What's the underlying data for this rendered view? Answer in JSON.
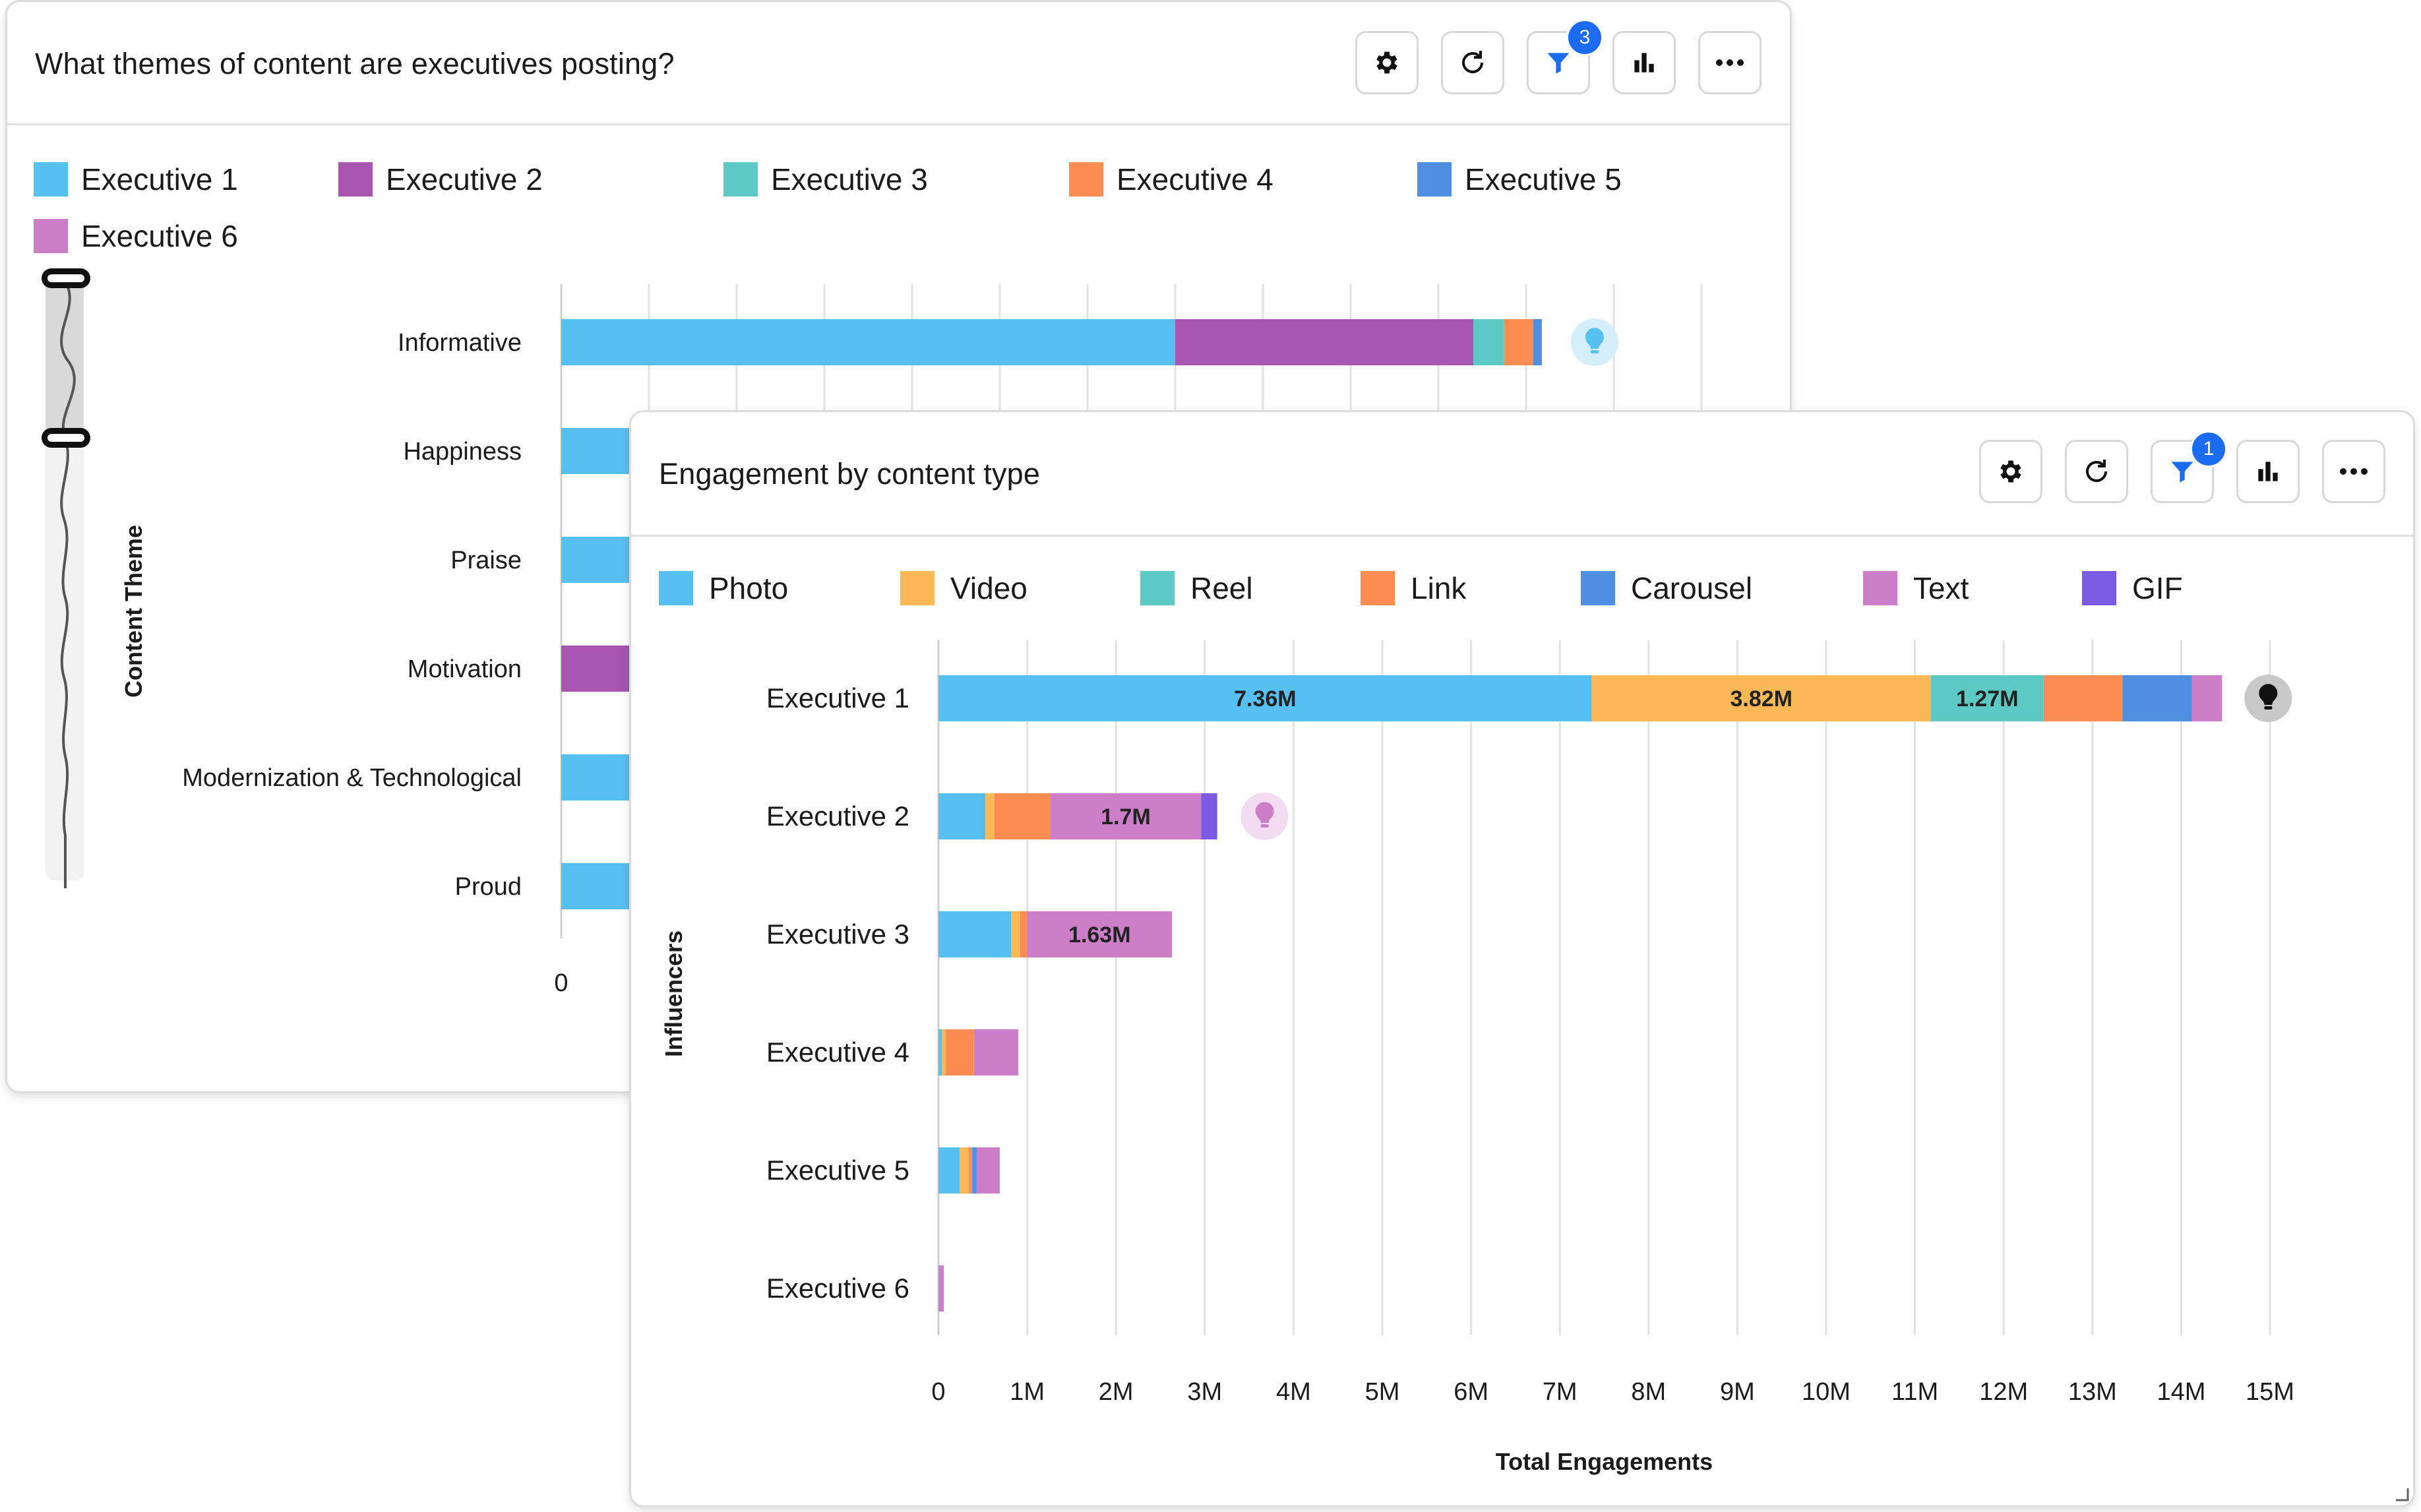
{
  "card1": {
    "title": "What themes of content are executives posting?",
    "filter_badge": "3",
    "legend": [
      {
        "label": "Executive 1",
        "color": "#56c0f0"
      },
      {
        "label": "Executive 2",
        "color": "#a855b0"
      },
      {
        "label": "Executive 3",
        "color": "#5cc9c4"
      },
      {
        "label": "Executive 4",
        "color": "#fb8d52"
      },
      {
        "label": "Executive 5",
        "color": "#4f8fe2"
      },
      {
        "label": "Executive 6",
        "color": "#cc7fc8"
      }
    ],
    "y_axis_title": "Content Theme",
    "zero_label": "0"
  },
  "card2": {
    "title": "Engagement by content type",
    "filter_badge": "1",
    "legend": [
      {
        "label": "Photo",
        "color": "#56c0f0"
      },
      {
        "label": "Video",
        "color": "#fbb854"
      },
      {
        "label": "Reel",
        "color": "#5cc9c4"
      },
      {
        "label": "Link",
        "color": "#fb8d52"
      },
      {
        "label": "Carousel",
        "color": "#4f8fe2"
      },
      {
        "label": "Text",
        "color": "#cc7fc8"
      },
      {
        "label": "GIF",
        "color": "#7a5ae0"
      }
    ]
  },
  "chart_data": [
    {
      "type": "bar",
      "orientation": "horizontal",
      "stacked": true,
      "title": "What themes of content are executives posting?",
      "ylabel": "Content Theme",
      "xlabel": "",
      "categories": [
        "Informative",
        "Happiness",
        "Praise",
        "Motivation",
        "Modernization & Technological",
        "Proud"
      ],
      "series": [
        {
          "name": "Executive 1",
          "values": [
            7.0,
            null,
            null,
            null,
            null,
            null
          ]
        },
        {
          "name": "Executive 2",
          "values": [
            3.4,
            null,
            null,
            null,
            null,
            null
          ]
        },
        {
          "name": "Executive 3",
          "values": [
            0.35,
            null,
            null,
            null,
            null,
            null
          ]
        },
        {
          "name": "Executive 4",
          "values": [
            0.33,
            null,
            null,
            null,
            null,
            null
          ]
        },
        {
          "name": "Executive 5",
          "values": [
            0.1,
            null,
            null,
            null,
            null,
            null
          ]
        },
        {
          "name": "Executive 6",
          "values": [
            0,
            null,
            null,
            null,
            null,
            null
          ]
        }
      ],
      "visible_first_segment": {
        "Happiness": "Executive 1",
        "Praise": "Executive 1",
        "Motivation": "Executive 2",
        "Modernization & Technological": "Executive 1",
        "Proud": "Executive 1"
      },
      "xlim_start": 0,
      "x_tick_labels": [
        "0"
      ]
    },
    {
      "type": "bar",
      "orientation": "horizontal",
      "stacked": true,
      "title": "Engagement by content type",
      "xlabel": "Total Engagements",
      "ylabel": "Influencers",
      "categories": [
        "Executive 1",
        "Executive 2",
        "Executive 3",
        "Executive 4",
        "Executive 5",
        "Executive 6"
      ],
      "series": [
        {
          "name": "Photo",
          "values": [
            7.36,
            0.53,
            0.82,
            0.04,
            0.24,
            0.0
          ]
        },
        {
          "name": "Video",
          "values": [
            3.82,
            0.1,
            0.1,
            0.04,
            0.1,
            0.0
          ]
        },
        {
          "name": "Reel",
          "values": [
            1.27,
            0.0,
            0.0,
            0.0,
            0.0,
            0.0
          ]
        },
        {
          "name": "Link",
          "values": [
            0.89,
            0.63,
            0.08,
            0.32,
            0.04,
            0.0
          ]
        },
        {
          "name": "Carousel",
          "values": [
            0.78,
            0.0,
            0.0,
            0.0,
            0.05,
            0.0
          ]
        },
        {
          "name": "Text",
          "values": [
            0.34,
            1.7,
            1.63,
            0.5,
            0.26,
            0.06
          ]
        },
        {
          "name": "GIF",
          "values": [
            0.0,
            0.18,
            0.0,
            0.0,
            0.0,
            0.0
          ]
        }
      ],
      "data_labels": [
        {
          "category": "Executive 1",
          "series": "Photo",
          "text": "7.36M"
        },
        {
          "category": "Executive 1",
          "series": "Video",
          "text": "3.82M"
        },
        {
          "category": "Executive 1",
          "series": "Reel",
          "text": "1.27M"
        },
        {
          "category": "Executive 2",
          "series": "Text",
          "text": "1.7M"
        },
        {
          "category": "Executive 3",
          "series": "Text",
          "text": "1.63M"
        }
      ],
      "xlim": [
        0,
        15
      ],
      "x_tick_labels": [
        "0",
        "1M",
        "2M",
        "3M",
        "4M",
        "5M",
        "6M",
        "7M",
        "8M",
        "9M",
        "10M",
        "11M",
        "12M",
        "13M",
        "14M",
        "15M"
      ],
      "units": "millions"
    }
  ]
}
